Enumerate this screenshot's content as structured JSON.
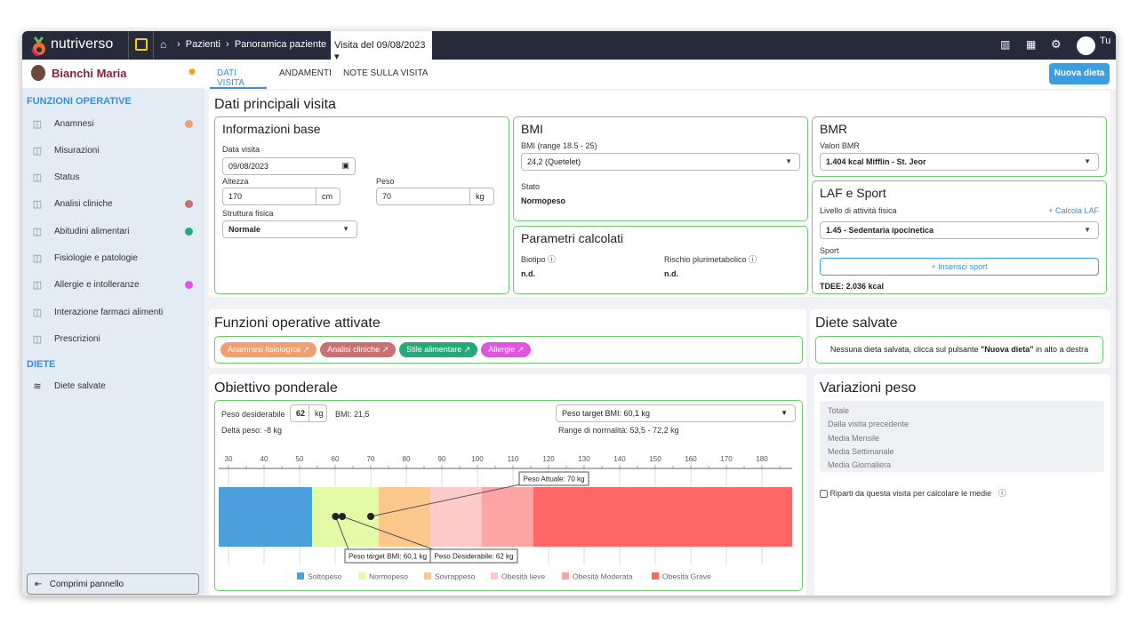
{
  "topbar": {
    "brand": "nutriverso",
    "breadcrumb": [
      "Pazienti",
      "Panoramica paziente"
    ],
    "current": "Visita del 09/08/2023",
    "user": "Tu"
  },
  "patient": {
    "name": "Bianchi Maria"
  },
  "tabs": [
    {
      "label": "DATI VISITA",
      "active": true
    },
    {
      "label": "ANDAMENTI"
    },
    {
      "label": "NOTE SULLA VISITA"
    }
  ],
  "new_diet": "Nuova dieta",
  "sidebar": {
    "section1": "FUNZIONI OPERATIVE",
    "items": [
      {
        "label": "Anamnesi",
        "icon": "anamnesis-icon",
        "dot": "#f0a070"
      },
      {
        "label": "Misurazioni",
        "icon": "ruler-icon"
      },
      {
        "label": "Status",
        "icon": "status-icon"
      },
      {
        "label": "Analisi cliniche",
        "icon": "test-tube-icon",
        "dot": "#c97070"
      },
      {
        "label": "Abitudini alimentari",
        "icon": "bowl-icon",
        "dot": "#25a97a"
      },
      {
        "label": "Fisiologie e patologie",
        "icon": "stethoscope-icon"
      },
      {
        "label": "Allergie e intolleranze",
        "icon": "hand-icon",
        "dot": "#e055e0"
      },
      {
        "label": "Interazione farmaci alimenti",
        "icon": "pills-icon"
      },
      {
        "label": "Prescrizioni",
        "icon": "prescription-icon"
      }
    ],
    "section2": "DIETE",
    "diet_item": "Diete salvate",
    "collapse": "Comprimi pannello"
  },
  "main": {
    "title": "Dati principali visita",
    "info": {
      "title": "Informazioni base",
      "date_label": "Data visita",
      "date": "09/08/2023",
      "height_label": "Altezza",
      "height": "170",
      "height_unit": "cm",
      "weight_label": "Peso",
      "weight": "70",
      "weight_unit": "kg",
      "build_label": "Struttura fisica",
      "build": "Normale"
    },
    "bmi": {
      "title": "BMI",
      "range_label": "BMI (range 18.5 - 25)",
      "value": "24,2 (Quetelet)",
      "state_label": "Stato",
      "state": "Normopeso"
    },
    "params": {
      "title": "Parametri calcolati",
      "biotype_label": "Biotipo",
      "biotype": "n.d.",
      "risk_label": "Rischio plurimetabolico",
      "risk": "n.d."
    },
    "bmr": {
      "title": "BMR",
      "label": "Valori BMR",
      "value": "1.404 kcal Mifflin - St. Jeor"
    },
    "laf": {
      "title": "LAF e Sport",
      "label": "Livello di attività fisica",
      "calc": "+ Calcola LAF",
      "value": "1.45 - Sedentaria ipocinetica",
      "sport_label": "Sport",
      "add_sport": "+ Inserisci sport",
      "tdee": "TDEE: 2.036 kcal"
    }
  },
  "functions": {
    "title": "Funzioni operative attivate",
    "tags": [
      {
        "label": "Anamnesi fisiologica",
        "color": "#f0a070"
      },
      {
        "label": "Analisi cliniche",
        "color": "#c97070"
      },
      {
        "label": "Stile alimentare",
        "color": "#25a97a"
      },
      {
        "label": "Allergie",
        "color": "#e055e0"
      }
    ]
  },
  "saved": {
    "title": "Diete salvate",
    "text_pre": "Nessuna dieta salvata, clicca sul pulsante ",
    "text_bold": "\"Nuova dieta\"",
    "text_post": " in alto a destra"
  },
  "objective": {
    "title": "Obiettivo ponderale",
    "desired_label": "Peso desiderabile",
    "desired": "62",
    "desired_unit": "kg",
    "bmi": "BMI: 21,5",
    "delta": "Delta peso: -8 kg",
    "target_select": "Peso target BMI: 60,1 kg",
    "range": "Range di normalità: 53,5 - 72,2 kg"
  },
  "variations": {
    "title": "Variazioni peso",
    "rows": [
      "Totale",
      "Dalla visita precedente",
      "Media Mensile",
      "Media Settimanale",
      "Media Giornaliera"
    ],
    "checkbox": "Riparti da questa visita per calcolare le medie"
  },
  "chart_data": {
    "type": "bar",
    "orientation": "horizontal-stacked",
    "xlim": [
      27.25,
      188.5
    ],
    "ticks": [
      30,
      40,
      50,
      60,
      70,
      80,
      90,
      100,
      110,
      120,
      130,
      140,
      150,
      160,
      170,
      180
    ],
    "bands": [
      {
        "name": "Sottopeso",
        "from": 27.25,
        "to": 53.5,
        "color": "#4a9fdc"
      },
      {
        "name": "Normopeso",
        "from": 53.5,
        "to": 72.2,
        "color": "#e3fba6"
      },
      {
        "name": "Sovrappeso",
        "from": 72.2,
        "to": 86.75,
        "color": "#fdc88c"
      },
      {
        "name": "Obesità lieve",
        "from": 86.75,
        "to": 101.25,
        "color": "#ffcaca"
      },
      {
        "name": "Obesità Moderata",
        "from": 101.25,
        "to": 115.75,
        "color": "#fda5a5"
      },
      {
        "name": "Obesità Grave",
        "from": 115.75,
        "to": 188.5,
        "color": "#ff6666"
      }
    ],
    "markers": [
      {
        "label": "Peso target BMI: 60,1 kg",
        "value": 60.1
      },
      {
        "label": "Peso Desiderabile: 62 kg",
        "value": 62
      },
      {
        "label": "Peso Attuale: 70 kg",
        "value": 70
      }
    ],
    "legend": "bottom"
  }
}
